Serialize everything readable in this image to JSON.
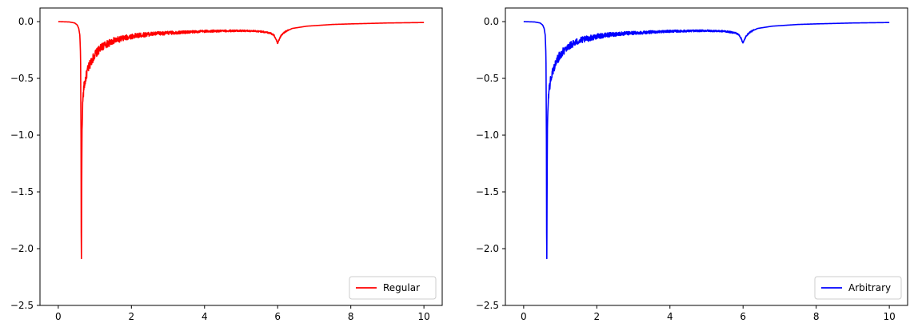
{
  "chart_data": [
    {
      "type": "line",
      "title": "",
      "xlabel": "",
      "ylabel": "",
      "xlim": [
        -0.5,
        10.5
      ],
      "ylim": [
        -2.5,
        0.12
      ],
      "xticks": [
        0,
        2,
        4,
        6,
        8,
        10
      ],
      "yticks": [
        0.0,
        -0.5,
        -1.0,
        -1.5,
        -2.0,
        -2.5
      ],
      "xtick_labels": [
        "0",
        "2",
        "4",
        "6",
        "8",
        "10"
      ],
      "ytick_labels": [
        "0.0",
        "−0.5",
        "−1.0",
        "−1.5",
        "−2.0",
        "−2.5"
      ],
      "grid": false,
      "legend_position": "lower-right",
      "series": [
        {
          "name": "Regular",
          "color": "#ff0000",
          "x": [
            0,
            0.3,
            0.45,
            0.52,
            0.56,
            0.59,
            0.61,
            0.625,
            0.63,
            0.64,
            0.65,
            0.67,
            0.7,
            0.75,
            0.8,
            0.9,
            1.0,
            1.2,
            1.5,
            2.0,
            2.5,
            3.0,
            4.0,
            5.0,
            5.5,
            5.8,
            5.9,
            5.95,
            6.0,
            6.05,
            6.1,
            6.2,
            6.4,
            6.8,
            7.5,
            8.0,
            9.0,
            10.0
          ],
          "y": [
            0.0,
            -0.003,
            -0.012,
            -0.03,
            -0.06,
            -0.12,
            -0.3,
            -1.2,
            -2.38,
            -1.5,
            -0.95,
            -0.7,
            -0.58,
            -0.5,
            -0.43,
            -0.35,
            -0.29,
            -0.22,
            -0.17,
            -0.13,
            -0.11,
            -0.1,
            -0.085,
            -0.08,
            -0.085,
            -0.1,
            -0.12,
            -0.15,
            -0.19,
            -0.15,
            -0.12,
            -0.09,
            -0.06,
            -0.04,
            -0.025,
            -0.02,
            -0.012,
            -0.008
          ],
          "noise": 0.04
        }
      ]
    },
    {
      "type": "line",
      "title": "",
      "xlabel": "",
      "ylabel": "",
      "xlim": [
        -0.5,
        10.5
      ],
      "ylim": [
        -2.5,
        0.12
      ],
      "xticks": [
        0,
        2,
        4,
        6,
        8,
        10
      ],
      "yticks": [
        0.0,
        -0.5,
        -1.0,
        -1.5,
        -2.0,
        -2.5
      ],
      "xtick_labels": [
        "0",
        "2",
        "4",
        "6",
        "8",
        "10"
      ],
      "ytick_labels": [
        "0.0",
        "−0.5",
        "−1.0",
        "−1.5",
        "−2.0",
        "−2.5"
      ],
      "grid": false,
      "legend_position": "lower-right",
      "series": [
        {
          "name": "Arbitrary",
          "color": "#0000ff",
          "x": [
            0,
            0.3,
            0.45,
            0.52,
            0.56,
            0.59,
            0.61,
            0.625,
            0.63,
            0.64,
            0.65,
            0.67,
            0.7,
            0.75,
            0.8,
            0.9,
            1.0,
            1.2,
            1.5,
            2.0,
            2.5,
            3.0,
            4.0,
            5.0,
            5.5,
            5.8,
            5.9,
            5.95,
            6.0,
            6.05,
            6.1,
            6.2,
            6.4,
            6.8,
            7.5,
            8.0,
            9.0,
            10.0
          ],
          "y": [
            0.0,
            -0.003,
            -0.012,
            -0.03,
            -0.06,
            -0.12,
            -0.3,
            -1.2,
            -2.38,
            -1.5,
            -0.95,
            -0.7,
            -0.58,
            -0.5,
            -0.43,
            -0.35,
            -0.29,
            -0.22,
            -0.17,
            -0.13,
            -0.11,
            -0.1,
            -0.085,
            -0.08,
            -0.085,
            -0.1,
            -0.12,
            -0.15,
            -0.19,
            -0.15,
            -0.12,
            -0.09,
            -0.06,
            -0.04,
            -0.025,
            -0.02,
            -0.012,
            -0.008
          ],
          "noise": 0.04
        }
      ]
    }
  ]
}
